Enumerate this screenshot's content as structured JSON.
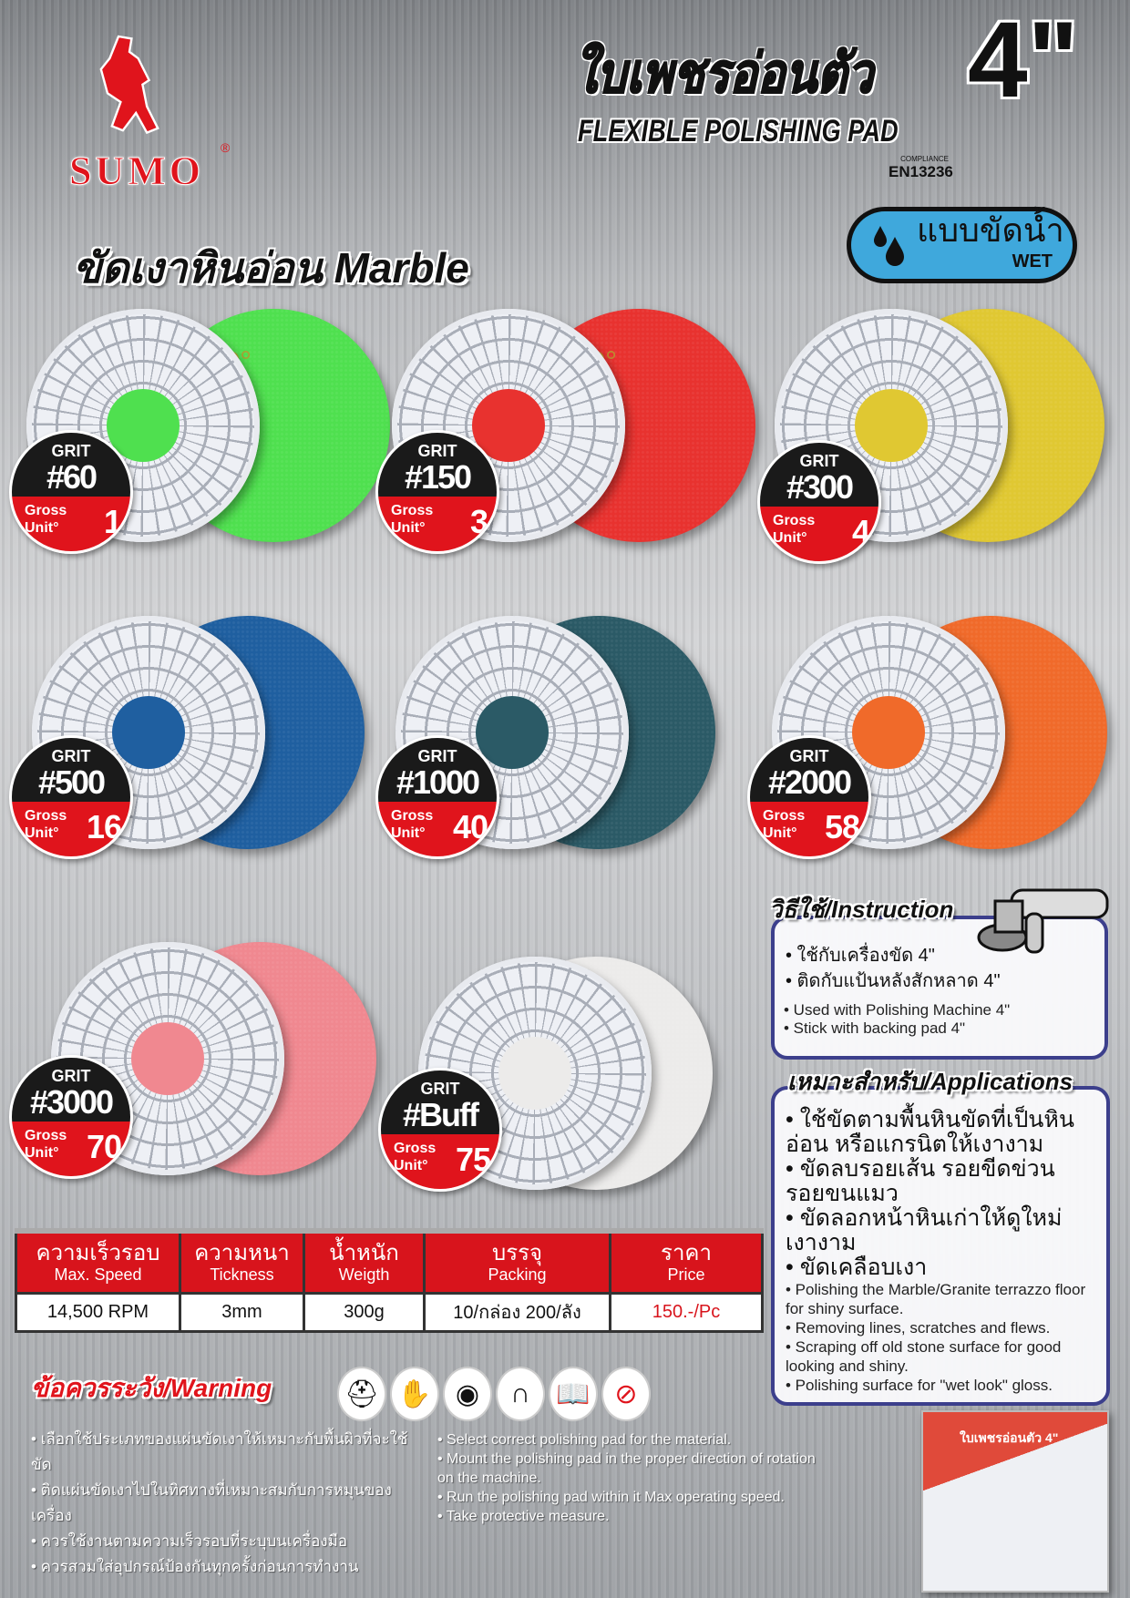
{
  "brand": {
    "name": "SUMO",
    "registered": "®"
  },
  "header": {
    "title_th": "ใบเพชรอ่อนตัว",
    "size": "4\"",
    "title_en": "FLEXIBLE POLISHING PAD",
    "compliance_label": "COMPLIANCE",
    "standard": "EN13236"
  },
  "section_title": "ขัดเงาหินอ่อน Marble",
  "wet_badge": {
    "th": "แบบขัดน้ำ",
    "en": "WET",
    "icon": "water-drops-icon",
    "color": "#3fa8dc"
  },
  "badge_labels": {
    "grit": "GRIT",
    "gross": "Gross",
    "unit": "Unit°"
  },
  "products": [
    {
      "grit": "#60",
      "gross": "1",
      "color": "#4fe04f"
    },
    {
      "grit": "#150",
      "gross": "3",
      "color": "#e8322f"
    },
    {
      "grit": "#300",
      "gross": "4",
      "color": "#e0c832"
    },
    {
      "grit": "#500",
      "gross": "16",
      "color": "#1f5fa0"
    },
    {
      "grit": "#1000",
      "gross": "40",
      "color": "#2b5a66"
    },
    {
      "grit": "#2000",
      "gross": "58",
      "color": "#f06a2a"
    },
    {
      "grit": "#3000",
      "gross": "70",
      "color": "#f08890"
    },
    {
      "grit": "#Buff",
      "gross": "75",
      "color": "#ecebea"
    }
  ],
  "instruction": {
    "title": "วิธีใช้/Instruction",
    "th": [
      "• ใช้กับเครื่องขัด 4\"",
      "• ติดกับแป้นหลังสักหลาด 4\""
    ],
    "en": [
      "• Used with Polishing Machine 4\"",
      "• Stick with backing pad 4\""
    ]
  },
  "applications": {
    "title": "เหมาะสำหรับ/Applications",
    "th": [
      "• ใช้ขัดตามพื้นหินขัดที่เป็นหินอ่อน หรือแกรนิตให้เงางาม",
      "• ขัดลบรอยเส้น รอยขีดข่วน รอยขนแมว",
      "• ขัดลอกหน้าหินเก่าให้ดูใหม่ เงางาม",
      "• ขัดเคลือบเงา"
    ],
    "en": [
      "• Polishing the Marble/Granite terrazzo floor for shiny surface.",
      "• Removing lines, scratches and flews.",
      "• Scraping off old stone surface for good looking and shiny.",
      "• Polishing  surface for \"wet look\" gloss."
    ]
  },
  "specs": {
    "headers": [
      {
        "th": "ความเร็วรอบ",
        "en": "Max. Speed"
      },
      {
        "th": "ความหนา",
        "en": "Tickness"
      },
      {
        "th": "น้ำหนัก",
        "en": "Weigth"
      },
      {
        "th": "บรรจุ",
        "en": "Packing"
      },
      {
        "th": "ราคา",
        "en": "Price"
      }
    ],
    "values": [
      "14,500 RPM",
      "3mm",
      "300g",
      "10/กล่อง 200/ลัง",
      "150.-/Pc"
    ],
    "price_color": "#d8141c"
  },
  "warning": {
    "title": "ข้อควรระวัง/Warning",
    "icons": [
      "helmet-icon",
      "gloves-icon",
      "goggles-icon",
      "ear-protection-icon",
      "read-manual-icon",
      "no-dry-use-icon"
    ],
    "th": [
      "• เลือกใช้ประเภทของแผ่นขัดเงาให้เหมาะกับพื้นผิวที่จะใช้ขัด",
      "• ติดแผ่นขัดเงาไปในทิศทางที่เหมาะสมกับการหมุนของเครื่อง",
      "• ควรใช้งานตามความเร็วรอบที่ระบุบนเครื่องมือ",
      "• ควรสวมใส่อุปกรณ์ป้องกันทุกครั้งก่อนการทำงาน"
    ],
    "en": [
      "• Select correct polishing pad for the material.",
      "• Mount the polishing pad in the proper direction of rotation on the machine.",
      "• Run the polishing pad within it Max operating speed.",
      "• Take protective measure."
    ]
  },
  "package": {
    "label": "ใบเพชรอ่อนตัว 4\""
  }
}
